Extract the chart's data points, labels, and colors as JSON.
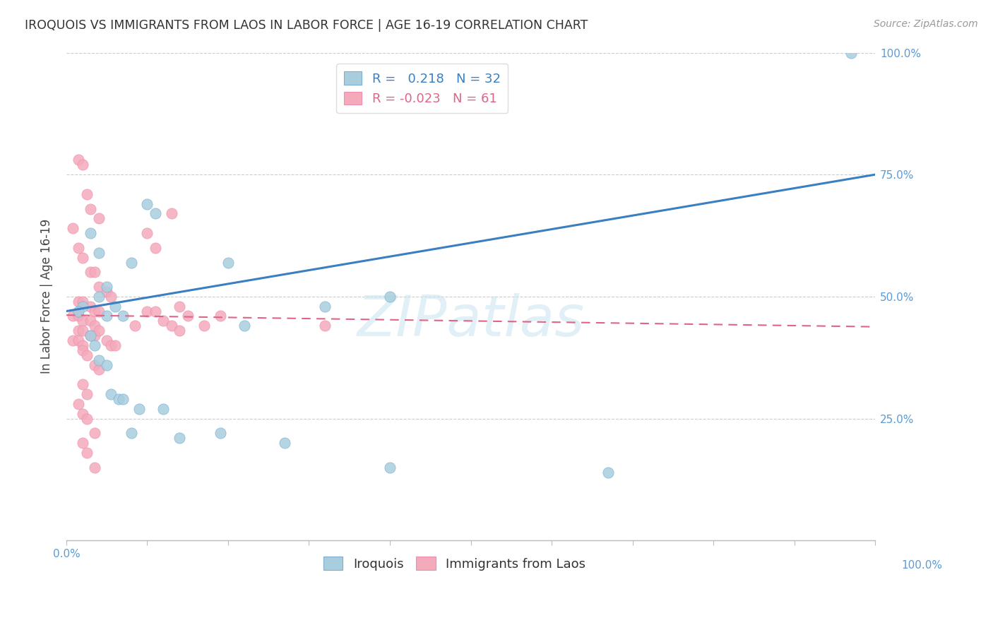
{
  "title": "IROQUOIS VS IMMIGRANTS FROM LAOS IN LABOR FORCE | AGE 16-19 CORRELATION CHART",
  "source": "Source: ZipAtlas.com",
  "ylabel": "In Labor Force | Age 16-19",
  "xlim": [
    0.0,
    1.0
  ],
  "ylim": [
    0.0,
    1.0
  ],
  "blue_R": 0.218,
  "blue_N": 32,
  "pink_R": -0.023,
  "pink_N": 61,
  "blue_color": "#A8CEDE",
  "pink_color": "#F4AABB",
  "blue_edge": "#7AADD5",
  "pink_edge": "#EE8FAD",
  "trendline_blue": "#3A7FC1",
  "trendline_pink": "#DD6688",
  "legend_blue_label": "Iroquois",
  "legend_pink_label": "Immigrants from Laos",
  "watermark": "ZIPatlas",
  "blue_x": [
    0.05,
    0.08,
    0.04,
    0.06,
    0.03,
    0.04,
    0.02,
    0.015,
    0.05,
    0.07,
    0.1,
    0.11,
    0.2,
    0.22,
    0.32,
    0.4,
    0.03,
    0.035,
    0.04,
    0.05,
    0.055,
    0.065,
    0.07,
    0.08,
    0.09,
    0.12,
    0.14,
    0.19,
    0.27,
    0.4,
    0.97,
    0.67
  ],
  "blue_y": [
    0.52,
    0.57,
    0.5,
    0.48,
    0.63,
    0.59,
    0.48,
    0.47,
    0.46,
    0.46,
    0.69,
    0.67,
    0.57,
    0.44,
    0.48,
    0.5,
    0.42,
    0.4,
    0.37,
    0.36,
    0.3,
    0.29,
    0.29,
    0.22,
    0.27,
    0.27,
    0.21,
    0.22,
    0.2,
    0.15,
    1.0,
    0.14
  ],
  "pink_x": [
    0.015,
    0.02,
    0.025,
    0.03,
    0.04,
    0.008,
    0.015,
    0.02,
    0.03,
    0.035,
    0.04,
    0.05,
    0.055,
    0.015,
    0.02,
    0.03,
    0.035,
    0.04,
    0.008,
    0.015,
    0.02,
    0.03,
    0.035,
    0.015,
    0.02,
    0.03,
    0.035,
    0.008,
    0.015,
    0.02,
    0.1,
    0.11,
    0.13,
    0.14,
    0.15,
    0.12,
    0.1,
    0.085,
    0.04,
    0.05,
    0.055,
    0.06,
    0.02,
    0.025,
    0.035,
    0.04,
    0.02,
    0.025,
    0.015,
    0.02,
    0.025,
    0.035,
    0.02,
    0.025,
    0.035,
    0.11,
    0.13,
    0.14,
    0.17,
    0.19,
    0.32
  ],
  "pink_y": [
    0.78,
    0.77,
    0.71,
    0.68,
    0.66,
    0.64,
    0.6,
    0.58,
    0.55,
    0.55,
    0.52,
    0.51,
    0.5,
    0.49,
    0.49,
    0.48,
    0.47,
    0.47,
    0.46,
    0.46,
    0.45,
    0.45,
    0.44,
    0.43,
    0.43,
    0.42,
    0.42,
    0.41,
    0.41,
    0.4,
    0.63,
    0.6,
    0.67,
    0.48,
    0.46,
    0.45,
    0.47,
    0.44,
    0.43,
    0.41,
    0.4,
    0.4,
    0.39,
    0.38,
    0.36,
    0.35,
    0.32,
    0.3,
    0.28,
    0.26,
    0.25,
    0.22,
    0.2,
    0.18,
    0.15,
    0.47,
    0.44,
    0.43,
    0.44,
    0.46,
    0.44
  ],
  "blue_trend_x": [
    0.0,
    1.0
  ],
  "blue_trend_y": [
    0.47,
    0.75
  ],
  "pink_trend_x": [
    0.0,
    1.0
  ],
  "pink_trend_y": [
    0.462,
    0.438
  ],
  "background_color": "#FFFFFF",
  "grid_color": "#CCCCCC",
  "axis_label_color": "#5B9BD5",
  "title_color": "#333333"
}
